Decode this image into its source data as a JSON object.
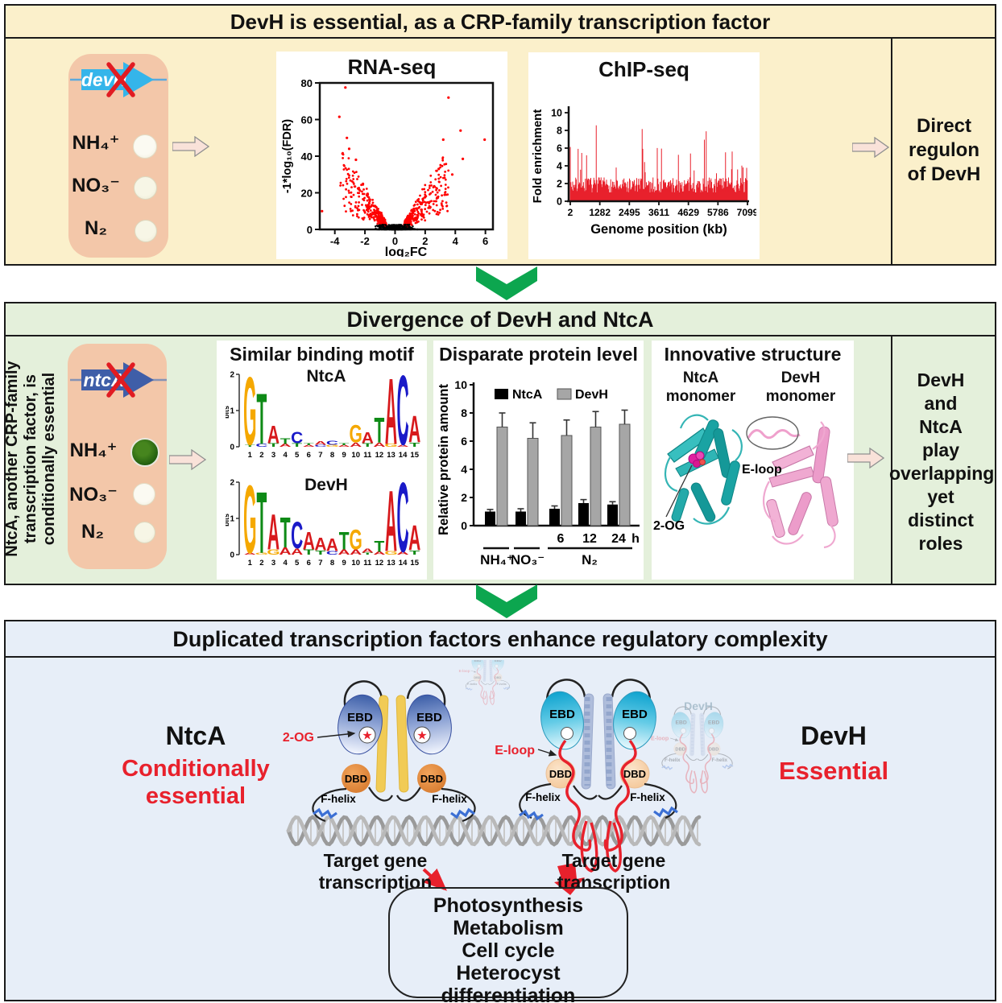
{
  "colors": {
    "panel1_bg": "#FBF0CB",
    "panel2_bg": "#E4F0DB",
    "panel3_bg": "#E7EEF8",
    "accent_green": "#0CA64F",
    "accent_red": "#E8212C",
    "devh_gene_arrow": "#35B5EA",
    "ntca_gene_arrow": "#3F5EA8",
    "bar_ntca": "#000000",
    "bar_devh": "#A6A6A6",
    "ntca_structure": "#1AA3A3",
    "devh_structure": "#F0A8D0"
  },
  "panel1": {
    "title": "DevH is essential, as a CRP-family transcription factor",
    "gene": {
      "label": "devH",
      "arrow_color": "#35B5EA",
      "line_color": "#5DA9DC"
    },
    "conditions": [
      {
        "label": "NH₄⁺"
      },
      {
        "label": "NO₃⁻"
      },
      {
        "label": "N₂"
      }
    ],
    "outcome": "Direct\nregulon\nof DevH"
  },
  "panel2": {
    "title": "Divergence of DevH and NtcA",
    "side_note": "NtcA, another CRP-family\ntranscription factor, is\nconditionally essential",
    "gene": {
      "label": "ntcA",
      "arrow_color": "#3F5EA8",
      "line_color": "#8593B5"
    },
    "conditions": [
      {
        "label": "NH₄⁺"
      },
      {
        "label": "NO₃⁻"
      },
      {
        "label": "N₂"
      }
    ],
    "cards": {
      "motif": {
        "title": "Similar binding motif"
      },
      "structure": {
        "title": "Innovative structure",
        "left_label": "NtcA\nmonomer",
        "right_label": "DevH\nmonomer",
        "annot_left": "2-OG",
        "annot_right": "E-loop"
      }
    },
    "outcome": "DevH\nand\nNtcA\nplay\noverlapping\nyet\ndistinct\nroles"
  },
  "panel3": {
    "title": "Duplicated transcription factors enhance regulatory complexity",
    "ntca": {
      "name": "NtcA",
      "status": "Conditionally\nessential"
    },
    "devh": {
      "name": "DevH",
      "status": "Essential"
    },
    "cartoon_labels": {
      "ebd": "EBD",
      "dbd": "DBD",
      "fhelix": "F-helix",
      "og": "2-OG",
      "eloop": "E-loop",
      "ghost": "DevH"
    },
    "target_transcription": "Target gene transcription",
    "outputs": [
      "Photosynthesis",
      "Metabolism",
      "Cell cycle",
      "Heterocyst differentiation",
      "..........."
    ]
  },
  "chart_data": [
    {
      "id": "volcano",
      "type": "scatter",
      "title": "RNA-seq",
      "xlabel": "log₂FC",
      "ylabel": "-1*log₁₀(FDR)",
      "xlim": [
        -5,
        6.5
      ],
      "ylim": [
        0,
        80
      ],
      "xticks": [
        -4,
        -2,
        0,
        2,
        4,
        6
      ],
      "yticks": [
        0,
        20,
        40,
        60,
        80
      ],
      "point_colors": {
        "significant": "#FF0000",
        "nonsignificant": "#000000"
      },
      "outliers": [
        [
          -3.3,
          77.5
        ],
        [
          3.55,
          72
        ],
        [
          -3.7,
          61.5
        ],
        [
          -3.2,
          50
        ],
        [
          3.2,
          49
        ],
        [
          4.35,
          54
        ],
        [
          5.95,
          49
        ],
        [
          -4.85,
          10
        ],
        [
          4.5,
          38.5
        ],
        [
          2.9,
          33
        ],
        [
          -2.6,
          38
        ],
        [
          3.8,
          30
        ],
        [
          -3.05,
          44
        ]
      ],
      "description": "Volcano plot: red significant DEGs form V-shaped wings (|log2FC| > ~0.8), black non-significant points cluster near FDR 0"
    },
    {
      "id": "chipseq",
      "type": "area",
      "title": "ChIP-seq",
      "xlabel": "Genome position (kb)",
      "ylabel": "Fold enrichment",
      "ylim": [
        0,
        10
      ],
      "yticks": [
        0,
        2,
        4,
        6,
        8,
        10
      ],
      "xtick_labels": [
        "2",
        "1282",
        "2495",
        "3611",
        "4629",
        "5786",
        "7099"
      ],
      "color": "#E8212C",
      "description": "Dense red enrichment spikes (fold enrichment ~1-9) across the whole genome"
    },
    {
      "id": "protein",
      "type": "bar",
      "title": "Disparate protein level",
      "ylabel": "Relative protein amount",
      "ylim": [
        0,
        10
      ],
      "yticks": [
        0,
        2,
        4,
        6,
        8,
        10
      ],
      "categories": [
        "NH₄⁺",
        "NO₃⁻",
        "N₂ 6 h",
        "N₂ 12 h",
        "N₂ 24 h"
      ],
      "group_labels": [
        "NH₄⁺",
        "NO₃⁻",
        "N₂"
      ],
      "time_ticks": [
        "6",
        "12",
        "24",
        "h"
      ],
      "series": [
        {
          "name": "NtcA",
          "color": "#000000",
          "values": [
            1.0,
            1.0,
            1.2,
            1.6,
            1.5
          ],
          "errors": [
            0.15,
            0.2,
            0.2,
            0.25,
            0.2
          ]
        },
        {
          "name": "DevH",
          "color": "#A6A6A6",
          "values": [
            7.0,
            6.2,
            6.4,
            7.0,
            7.2
          ],
          "errors": [
            1.0,
            1.1,
            1.1,
            1.1,
            1.0
          ]
        }
      ]
    },
    {
      "id": "logo_ntca",
      "type": "sequence_logo",
      "label": "NtcA",
      "ylabel": "bits",
      "ylim": [
        0,
        2
      ],
      "letter_colors": {
        "A": "#D7191C",
        "C": "#1A1AC8",
        "G": "#F5A800",
        "T": "#0E8A16"
      },
      "positions": [
        [
          [
            "T",
            0.06
          ],
          [
            "G",
            1.9
          ]
        ],
        [
          [
            "C",
            0.08
          ],
          [
            "T",
            1.42
          ]
        ],
        [
          [
            "T",
            0.1
          ],
          [
            "A",
            0.5
          ]
        ],
        [
          [
            "A",
            0.08
          ],
          [
            "T",
            0.16
          ]
        ],
        [
          [
            "T",
            0.1
          ],
          [
            "C",
            0.32
          ]
        ],
        [
          [
            "A",
            0.05
          ],
          [
            "T",
            0.05
          ]
        ],
        [
          [
            "C",
            0.06
          ],
          [
            "A",
            0.1
          ]
        ],
        [
          [
            "G",
            0.06
          ],
          [
            "C",
            0.12
          ]
        ],
        [
          [
            "A",
            0.05
          ],
          [
            "T",
            0.06
          ]
        ],
        [
          [
            "A",
            0.12
          ],
          [
            "G",
            0.5
          ]
        ],
        [
          [
            "T",
            0.1
          ],
          [
            "A",
            0.3
          ]
        ],
        [
          [
            "A",
            0.12
          ],
          [
            "T",
            0.7
          ]
        ],
        [
          [
            "G",
            0.08
          ],
          [
            "A",
            1.85
          ]
        ],
        [
          [
            "A",
            0.06
          ],
          [
            "C",
            1.95
          ]
        ],
        [
          [
            "T",
            0.12
          ],
          [
            "A",
            0.75
          ]
        ]
      ]
    },
    {
      "id": "logo_devh",
      "type": "sequence_logo",
      "label": "DevH",
      "ylabel": "bits",
      "ylim": [
        0,
        2
      ],
      "letter_colors": {
        "A": "#D7191C",
        "C": "#1A1AC8",
        "G": "#F5A800",
        "T": "#0E8A16"
      },
      "positions": [
        [
          [
            "A",
            0.05
          ],
          [
            "G",
            1.9
          ]
        ],
        [
          [
            "G",
            0.06
          ],
          [
            "T",
            1.72
          ]
        ],
        [
          [
            "G",
            0.15
          ],
          [
            "A",
            1.0
          ]
        ],
        [
          [
            "A",
            0.2
          ],
          [
            "T",
            0.85
          ]
        ],
        [
          [
            "A",
            0.18
          ],
          [
            "C",
            0.75
          ]
        ],
        [
          [
            "T",
            0.15
          ],
          [
            "A",
            0.5
          ]
        ],
        [
          [
            "T",
            0.12
          ],
          [
            "A",
            0.35
          ]
        ],
        [
          [
            "C",
            0.1
          ],
          [
            "A",
            0.35
          ]
        ],
        [
          [
            "A",
            0.15
          ],
          [
            "T",
            0.5
          ]
        ],
        [
          [
            "A",
            0.15
          ],
          [
            "G",
            0.55
          ]
        ],
        [
          [
            "T",
            0.06
          ],
          [
            "A",
            0.12
          ]
        ],
        [
          [
            "A",
            0.08
          ],
          [
            "T",
            0.3
          ]
        ],
        [
          [
            "G",
            0.1
          ],
          [
            "A",
            1.7
          ]
        ],
        [
          [
            "A",
            0.08
          ],
          [
            "C",
            1.95
          ]
        ],
        [
          [
            "T",
            0.12
          ],
          [
            "A",
            0.7
          ]
        ]
      ]
    }
  ]
}
